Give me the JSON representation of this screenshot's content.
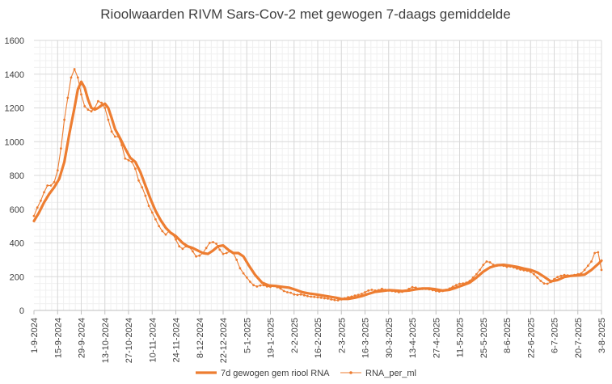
{
  "chart_data": {
    "type": "line",
    "title": "Rioolwaarden RIVM Sars-Cov-2 met gewogen 7-daags gemiddelde",
    "xlabel": "",
    "ylabel": "",
    "ylim": [
      0,
      1600
    ],
    "y_ticks": [
      "0",
      "200",
      "400",
      "600",
      "800",
      "1000",
      "1200",
      "1400",
      "1600"
    ],
    "x_ticks": [
      "1-9-2024",
      "15-9-2024",
      "29-9-2024",
      "13-10-2024",
      "27-10-2024",
      "10-11-2024",
      "24-11-2024",
      "8-12-2024",
      "22-12-2024",
      "5-1-2025",
      "19-1-2025",
      "2-2-2025",
      "16-2-2025",
      "2-3-2025",
      "16-3-2025",
      "30-3-2025",
      "13-4-2025",
      "27-4-2025",
      "11-5-2025",
      "25-5-2025",
      "8-6-2025",
      "22-6-2025",
      "6-7-2025",
      "20-7-2025",
      "3-8-2025"
    ],
    "x_range": [
      "2024-09-01",
      "2025-08-03"
    ],
    "grid": true,
    "legend_position": "bottom",
    "series": [
      {
        "name": "7d gewogen gem riool RNA",
        "color": "#ED7D31",
        "style": "thick-line",
        "points": [
          [
            "2024-09-01",
            530
          ],
          [
            "2024-09-04",
            580
          ],
          [
            "2024-09-07",
            640
          ],
          [
            "2024-09-10",
            690
          ],
          [
            "2024-09-13",
            730
          ],
          [
            "2024-09-16",
            780
          ],
          [
            "2024-09-19",
            880
          ],
          [
            "2024-09-22",
            1050
          ],
          [
            "2024-09-25",
            1200
          ],
          [
            "2024-09-27",
            1310
          ],
          [
            "2024-09-29",
            1355
          ],
          [
            "2024-10-01",
            1320
          ],
          [
            "2024-10-03",
            1250
          ],
          [
            "2024-10-05",
            1200
          ],
          [
            "2024-10-07",
            1190
          ],
          [
            "2024-10-09",
            1200
          ],
          [
            "2024-10-11",
            1215
          ],
          [
            "2024-10-13",
            1225
          ],
          [
            "2024-10-15",
            1200
          ],
          [
            "2024-10-17",
            1140
          ],
          [
            "2024-10-19",
            1075
          ],
          [
            "2024-10-22",
            1020
          ],
          [
            "2024-10-25",
            960
          ],
          [
            "2024-10-28",
            905
          ],
          [
            "2024-10-31",
            880
          ],
          [
            "2024-11-03",
            820
          ],
          [
            "2024-11-06",
            740
          ],
          [
            "2024-11-09",
            660
          ],
          [
            "2024-11-12",
            590
          ],
          [
            "2024-11-15",
            535
          ],
          [
            "2024-11-18",
            490
          ],
          [
            "2024-11-21",
            460
          ],
          [
            "2024-11-24",
            440
          ],
          [
            "2024-11-28",
            400
          ],
          [
            "2024-12-01",
            380
          ],
          [
            "2024-12-04",
            370
          ],
          [
            "2024-12-07",
            355
          ],
          [
            "2024-12-10",
            340
          ],
          [
            "2024-12-13",
            335
          ],
          [
            "2024-12-16",
            355
          ],
          [
            "2024-12-19",
            380
          ],
          [
            "2024-12-22",
            385
          ],
          [
            "2024-12-25",
            360
          ],
          [
            "2024-12-28",
            340
          ],
          [
            "2024-12-31",
            340
          ],
          [
            "2025-01-03",
            320
          ],
          [
            "2025-01-06",
            270
          ],
          [
            "2025-01-10",
            210
          ],
          [
            "2025-01-14",
            165
          ],
          [
            "2025-01-18",
            148
          ],
          [
            "2025-01-22",
            145
          ],
          [
            "2025-01-26",
            140
          ],
          [
            "2025-01-30",
            135
          ],
          [
            "2025-02-03",
            122
          ],
          [
            "2025-02-07",
            108
          ],
          [
            "2025-02-11",
            100
          ],
          [
            "2025-02-15",
            95
          ],
          [
            "2025-02-19",
            88
          ],
          [
            "2025-02-23",
            82
          ],
          [
            "2025-02-27",
            75
          ],
          [
            "2025-03-02",
            68
          ],
          [
            "2025-03-06",
            68
          ],
          [
            "2025-03-10",
            75
          ],
          [
            "2025-03-14",
            85
          ],
          [
            "2025-03-18",
            98
          ],
          [
            "2025-03-22",
            110
          ],
          [
            "2025-03-26",
            115
          ],
          [
            "2025-03-30",
            120
          ],
          [
            "2025-04-03",
            118
          ],
          [
            "2025-04-07",
            115
          ],
          [
            "2025-04-11",
            118
          ],
          [
            "2025-04-15",
            125
          ],
          [
            "2025-04-19",
            130
          ],
          [
            "2025-04-23",
            130
          ],
          [
            "2025-04-27",
            125
          ],
          [
            "2025-05-01",
            118
          ],
          [
            "2025-05-05",
            122
          ],
          [
            "2025-05-09",
            135
          ],
          [
            "2025-05-13",
            150
          ],
          [
            "2025-05-17",
            165
          ],
          [
            "2025-05-21",
            195
          ],
          [
            "2025-05-25",
            230
          ],
          [
            "2025-05-29",
            255
          ],
          [
            "2025-06-02",
            268
          ],
          [
            "2025-06-06",
            270
          ],
          [
            "2025-06-10",
            265
          ],
          [
            "2025-06-14",
            258
          ],
          [
            "2025-06-18",
            248
          ],
          [
            "2025-06-22",
            240
          ],
          [
            "2025-06-26",
            225
          ],
          [
            "2025-06-30",
            200
          ],
          [
            "2025-07-04",
            172
          ],
          [
            "2025-07-08",
            180
          ],
          [
            "2025-07-12",
            198
          ],
          [
            "2025-07-16",
            205
          ],
          [
            "2025-07-20",
            208
          ],
          [
            "2025-07-24",
            212
          ],
          [
            "2025-07-28",
            240
          ],
          [
            "2025-08-01",
            275
          ],
          [
            "2025-08-03",
            295
          ]
        ]
      },
      {
        "name": "RNA_per_ml",
        "color": "#ED7D31",
        "style": "thin-line-markers",
        "points": [
          [
            "2024-09-01",
            560
          ],
          [
            "2024-09-03",
            610
          ],
          [
            "2024-09-05",
            650
          ],
          [
            "2024-09-07",
            700
          ],
          [
            "2024-09-09",
            740
          ],
          [
            "2024-09-11",
            740
          ],
          [
            "2024-09-13",
            760
          ],
          [
            "2024-09-15",
            830
          ],
          [
            "2024-09-17",
            960
          ],
          [
            "2024-09-19",
            1130
          ],
          [
            "2024-09-21",
            1260
          ],
          [
            "2024-09-23",
            1380
          ],
          [
            "2024-09-25",
            1430
          ],
          [
            "2024-09-27",
            1380
          ],
          [
            "2024-09-29",
            1280
          ],
          [
            "2024-10-01",
            1210
          ],
          [
            "2024-10-03",
            1190
          ],
          [
            "2024-10-05",
            1180
          ],
          [
            "2024-10-07",
            1200
          ],
          [
            "2024-10-09",
            1240
          ],
          [
            "2024-10-11",
            1230
          ],
          [
            "2024-10-13",
            1200
          ],
          [
            "2024-10-15",
            1130
          ],
          [
            "2024-10-17",
            1060
          ],
          [
            "2024-10-19",
            1030
          ],
          [
            "2024-10-21",
            1030
          ],
          [
            "2024-10-23",
            980
          ],
          [
            "2024-10-25",
            900
          ],
          [
            "2024-10-27",
            890
          ],
          [
            "2024-10-29",
            880
          ],
          [
            "2024-10-31",
            840
          ],
          [
            "2024-11-02",
            770
          ],
          [
            "2024-11-04",
            730
          ],
          [
            "2024-11-06",
            680
          ],
          [
            "2024-11-08",
            620
          ],
          [
            "2024-11-10",
            580
          ],
          [
            "2024-11-12",
            540
          ],
          [
            "2024-11-14",
            500
          ],
          [
            "2024-11-16",
            470
          ],
          [
            "2024-11-18",
            450
          ],
          [
            "2024-11-20",
            470
          ],
          [
            "2024-11-22",
            455
          ],
          [
            "2024-11-24",
            420
          ],
          [
            "2024-11-26",
            380
          ],
          [
            "2024-11-28",
            365
          ],
          [
            "2024-11-30",
            380
          ],
          [
            "2024-12-02",
            375
          ],
          [
            "2024-12-04",
            350
          ],
          [
            "2024-12-06",
            320
          ],
          [
            "2024-12-08",
            325
          ],
          [
            "2024-12-10",
            340
          ],
          [
            "2024-12-12",
            370
          ],
          [
            "2024-12-14",
            400
          ],
          [
            "2024-12-16",
            405
          ],
          [
            "2024-12-18",
            395
          ],
          [
            "2024-12-20",
            360
          ],
          [
            "2024-12-22",
            335
          ],
          [
            "2024-12-24",
            340
          ],
          [
            "2024-12-26",
            350
          ],
          [
            "2024-12-28",
            340
          ],
          [
            "2024-12-30",
            300
          ],
          [
            "2025-01-01",
            250
          ],
          [
            "2025-01-03",
            220
          ],
          [
            "2025-01-05",
            195
          ],
          [
            "2025-01-07",
            170
          ],
          [
            "2025-01-09",
            150
          ],
          [
            "2025-01-11",
            142
          ],
          [
            "2025-01-13",
            148
          ],
          [
            "2025-01-15",
            150
          ],
          [
            "2025-01-17",
            142
          ],
          [
            "2025-01-19",
            140
          ],
          [
            "2025-01-21",
            145
          ],
          [
            "2025-01-23",
            138
          ],
          [
            "2025-01-25",
            130
          ],
          [
            "2025-01-27",
            115
          ],
          [
            "2025-01-29",
            108
          ],
          [
            "2025-01-31",
            105
          ],
          [
            "2025-02-02",
            95
          ],
          [
            "2025-02-04",
            92
          ],
          [
            "2025-02-06",
            95
          ],
          [
            "2025-02-08",
            90
          ],
          [
            "2025-02-10",
            85
          ],
          [
            "2025-02-12",
            82
          ],
          [
            "2025-02-14",
            80
          ],
          [
            "2025-02-16",
            78
          ],
          [
            "2025-02-18",
            75
          ],
          [
            "2025-02-20",
            72
          ],
          [
            "2025-02-22",
            70
          ],
          [
            "2025-02-24",
            65
          ],
          [
            "2025-02-26",
            62
          ],
          [
            "2025-02-28",
            60
          ],
          [
            "2025-03-02",
            65
          ],
          [
            "2025-03-04",
            72
          ],
          [
            "2025-03-06",
            78
          ],
          [
            "2025-03-08",
            82
          ],
          [
            "2025-03-10",
            88
          ],
          [
            "2025-03-12",
            92
          ],
          [
            "2025-03-14",
            98
          ],
          [
            "2025-03-16",
            108
          ],
          [
            "2025-03-18",
            118
          ],
          [
            "2025-03-20",
            122
          ],
          [
            "2025-03-22",
            118
          ],
          [
            "2025-03-24",
            120
          ],
          [
            "2025-03-26",
            128
          ],
          [
            "2025-03-28",
            122
          ],
          [
            "2025-03-30",
            118
          ],
          [
            "2025-04-01",
            115
          ],
          [
            "2025-04-03",
            112
          ],
          [
            "2025-04-05",
            108
          ],
          [
            "2025-04-07",
            110
          ],
          [
            "2025-04-09",
            118
          ],
          [
            "2025-04-11",
            128
          ],
          [
            "2025-04-13",
            138
          ],
          [
            "2025-04-15",
            135
          ],
          [
            "2025-04-17",
            130
          ],
          [
            "2025-04-19",
            128
          ],
          [
            "2025-04-21",
            128
          ],
          [
            "2025-04-23",
            125
          ],
          [
            "2025-04-25",
            120
          ],
          [
            "2025-04-27",
            115
          ],
          [
            "2025-04-29",
            112
          ],
          [
            "2025-05-01",
            115
          ],
          [
            "2025-05-03",
            122
          ],
          [
            "2025-05-05",
            130
          ],
          [
            "2025-05-07",
            140
          ],
          [
            "2025-05-09",
            150
          ],
          [
            "2025-05-11",
            158
          ],
          [
            "2025-05-13",
            160
          ],
          [
            "2025-05-15",
            165
          ],
          [
            "2025-05-17",
            175
          ],
          [
            "2025-05-19",
            195
          ],
          [
            "2025-05-21",
            215
          ],
          [
            "2025-05-23",
            240
          ],
          [
            "2025-05-25",
            270
          ],
          [
            "2025-05-27",
            290
          ],
          [
            "2025-05-29",
            285
          ],
          [
            "2025-05-31",
            270
          ],
          [
            "2025-06-02",
            265
          ],
          [
            "2025-06-04",
            268
          ],
          [
            "2025-06-06",
            265
          ],
          [
            "2025-06-08",
            258
          ],
          [
            "2025-06-10",
            260
          ],
          [
            "2025-06-12",
            255
          ],
          [
            "2025-06-14",
            248
          ],
          [
            "2025-06-16",
            242
          ],
          [
            "2025-06-18",
            238
          ],
          [
            "2025-06-20",
            235
          ],
          [
            "2025-06-22",
            228
          ],
          [
            "2025-06-24",
            215
          ],
          [
            "2025-06-26",
            195
          ],
          [
            "2025-06-28",
            175
          ],
          [
            "2025-06-30",
            160
          ],
          [
            "2025-07-02",
            158
          ],
          [
            "2025-07-04",
            168
          ],
          [
            "2025-07-06",
            185
          ],
          [
            "2025-07-08",
            198
          ],
          [
            "2025-07-10",
            205
          ],
          [
            "2025-07-12",
            210
          ],
          [
            "2025-07-14",
            208
          ],
          [
            "2025-07-16",
            205
          ],
          [
            "2025-07-18",
            210
          ],
          [
            "2025-07-20",
            215
          ],
          [
            "2025-07-22",
            220
          ],
          [
            "2025-07-24",
            240
          ],
          [
            "2025-07-26",
            265
          ],
          [
            "2025-07-28",
            290
          ],
          [
            "2025-07-30",
            340
          ],
          [
            "2025-08-01",
            345
          ],
          [
            "2025-08-03",
            240
          ]
        ]
      }
    ]
  }
}
